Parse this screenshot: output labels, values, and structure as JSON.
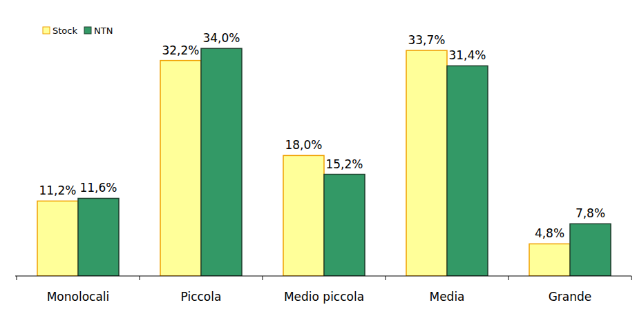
{
  "chart_data": {
    "type": "bar",
    "categories": [
      "Monolocali",
      "Piccola",
      "Medio piccola",
      "Media",
      "Grande"
    ],
    "series": [
      {
        "name": "Stock",
        "color": "#ffff99",
        "values": [
          11.2,
          32.2,
          18.0,
          33.7,
          4.8
        ],
        "value_labels": [
          "11,2%",
          "32,2%",
          "18,0%",
          "33,7%",
          "4,8%"
        ]
      },
      {
        "name": "NTN",
        "color": "#339966",
        "values": [
          11.6,
          34.0,
          15.2,
          31.4,
          7.8
        ],
        "value_labels": [
          "11,6%",
          "34,0%",
          "15,2%",
          "31,4%",
          "7,8%"
        ]
      }
    ],
    "ylim": [
      0,
      40
    ],
    "legend": "top-left",
    "data_labels": true,
    "tick_labels": "x",
    "grid": false
  }
}
